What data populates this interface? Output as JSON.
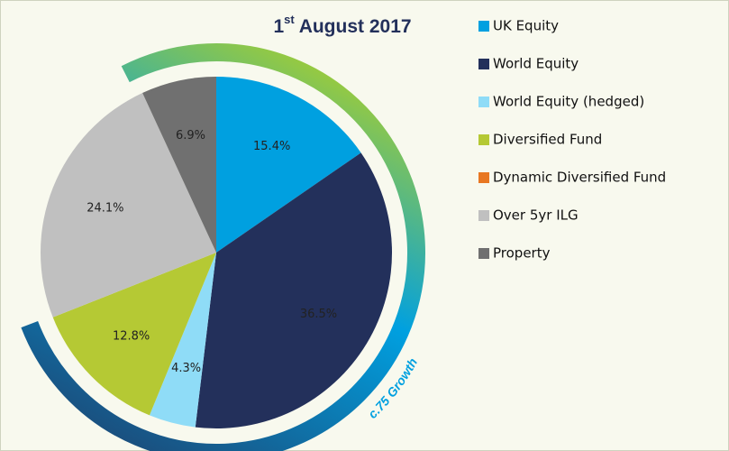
{
  "chart_data": {
    "type": "pie",
    "title": {
      "day": "1",
      "suffix": "st",
      "rest": "August 2017"
    },
    "categories": [
      "UK Equity",
      "World Equity",
      "World Equity (hedged)",
      "Diversified Fund",
      "Dynamic Diversified Fund",
      "Over 5yr ILG",
      "Property"
    ],
    "values": [
      15.4,
      36.5,
      4.3,
      12.8,
      0,
      24.1,
      6.9
    ],
    "value_labels": [
      "15.4%",
      "36.5%",
      "4.3%",
      "12.8%",
      null,
      "24.1%",
      "6.9%"
    ],
    "colors": [
      "#00a0e0",
      "#23305b",
      "#8fdcf7",
      "#b5c934",
      "#e87722",
      "#c0c0c0",
      "#707070"
    ],
    "annotation": "c.75 Growth"
  }
}
